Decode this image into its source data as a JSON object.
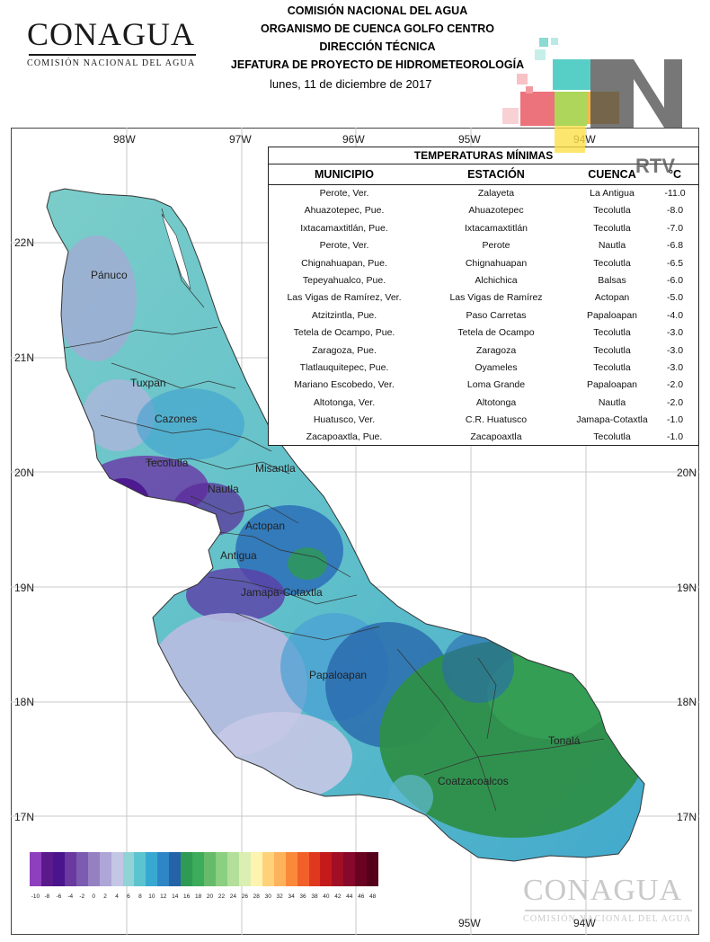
{
  "agency_logo": {
    "wordmark": "CONAGUA",
    "subtitle": "COMISIÓN NACIONAL DEL AGUA"
  },
  "header": {
    "lines": [
      "COMISIÓN NACIONAL DEL AGUA",
      "ORGANISMO DE CUENCA GOLFO CENTRO",
      "DIRECCIÓN TÉCNICA",
      "JEFATURA DE PROYECTO DE HIDROMETEOROLOGÍA"
    ],
    "date": "lunes, 11 de diciembre de 2017"
  },
  "rtv_logo": {
    "letter": "N",
    "text": "RTV"
  },
  "map": {
    "lon_labels_top": [
      "98W",
      "97W",
      "96W",
      "95W",
      "94W"
    ],
    "lon_labels_bottom": [
      "95W",
      "94W"
    ],
    "lat_labels": [
      "22N",
      "21N",
      "20N",
      "19N",
      "18N",
      "17N"
    ],
    "regions": [
      "Pánuco",
      "Tuxpan",
      "Cazones",
      "Tecolutla",
      "Nautla",
      "Misantla",
      "Actopan",
      "Antigua",
      "Jamapa-Cotaxtla",
      "Papaloapan",
      "Coatzacoalcos",
      "Tonalá"
    ]
  },
  "table": {
    "title": "TEMPERATURAS MÍNIMAS",
    "headers": [
      "MUNICIPIO",
      "ESTACIÓN",
      "CUENCA",
      "°C"
    ],
    "rows": [
      [
        "Perote, Ver.",
        "Zalayeta",
        "La Antigua",
        "-11.0"
      ],
      [
        "Ahuazotepec, Pue.",
        "Ahuazotepec",
        "Tecolutla",
        "-8.0"
      ],
      [
        "Ixtacamaxtitlán, Pue.",
        "Ixtacamaxtitlán",
        "Tecolutla",
        "-7.0"
      ],
      [
        "Perote, Ver.",
        "Perote",
        "Nautla",
        "-6.8"
      ],
      [
        "Chignahuapan, Pue.",
        "Chignahuapan",
        "Tecolutla",
        "-6.5"
      ],
      [
        "Tepeyahualco, Pue.",
        "Alchichica",
        "Balsas",
        "-6.0"
      ],
      [
        "Las Vigas de Ramírez, Ver.",
        "Las Vigas de Ramírez",
        "Actopan",
        "-5.0"
      ],
      [
        "Atzitzintla, Pue.",
        "Paso Carretas",
        "Papaloapan",
        "-4.0"
      ],
      [
        "Tetela de Ocampo, Pue.",
        "Tetela de Ocampo",
        "Tecolutla",
        "-3.0"
      ],
      [
        "Zaragoza, Pue.",
        "Zaragoza",
        "Tecolutla",
        "-3.0"
      ],
      [
        "Tlatlauquitepec, Pue.",
        "Oyameles",
        "Tecolutla",
        "-3.0"
      ],
      [
        "Mariano Escobedo, Ver.",
        "Loma Grande",
        "Papaloapan",
        "-2.0"
      ],
      [
        "Altotonga, Ver.",
        "Altotonga",
        "Nautla",
        "-2.0"
      ],
      [
        "Huatusco, Ver.",
        "C.R. Huatusco",
        "Jamapa-Cotaxtla",
        "-1.0"
      ],
      [
        "Zacapoaxtla, Pue.",
        "Zacapoaxtla",
        "Tecolutla",
        "-1.0"
      ]
    ]
  },
  "legend": {
    "ticks": [
      "-10",
      "-8",
      "-6",
      "-4",
      "-2",
      "0",
      "2",
      "4",
      "6",
      "8",
      "10",
      "12",
      "14",
      "16",
      "18",
      "20",
      "22",
      "24",
      "26",
      "28",
      "30",
      "32",
      "34",
      "36",
      "38",
      "40",
      "42",
      "44",
      "46",
      "48"
    ],
    "colors": [
      "#8e3fbd",
      "#5a1a8c",
      "#4a148c",
      "#6a3aa0",
      "#7b5cb0",
      "#9580c2",
      "#ada6d6",
      "#c3c6e4",
      "#8fd3d6",
      "#5cc4cf",
      "#37a9d1",
      "#2f86c7",
      "#2563a9",
      "#2e9a54",
      "#3cab5a",
      "#66bb6a",
      "#8bcf80",
      "#b3df9a",
      "#dcefb2",
      "#fff3b0",
      "#ffd27a",
      "#fdb35c",
      "#fa8a3a",
      "#f2602a",
      "#e0371f",
      "#c41a1a",
      "#a10f25",
      "#86082a",
      "#6a0322",
      "#55001b"
    ]
  },
  "watermark": {
    "wordmark": "CONAGUA",
    "subtitle": "COMISIÓN NACIONAL DEL AGUA"
  }
}
